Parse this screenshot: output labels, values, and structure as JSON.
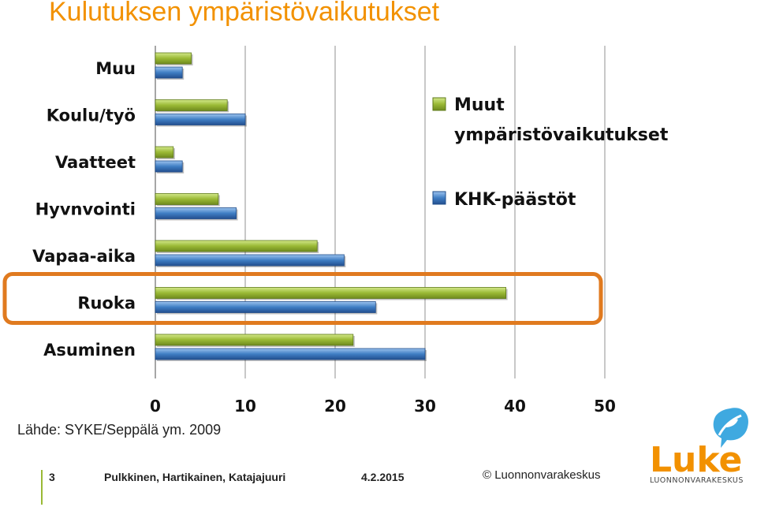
{
  "title": "Kulutuksen ympäristövaikutukset",
  "chart_data": {
    "type": "bar",
    "orientation": "horizontal",
    "categories": [
      "Muu",
      "Koulu/työ",
      "Vaatteet",
      "Hyvnvointi",
      "Vapaa-aika",
      "Ruoka",
      "Asuminen"
    ],
    "series": [
      {
        "name": "Muut ympäristövaikutukset",
        "color": "#9ab935",
        "values": [
          4,
          8,
          2,
          7,
          18,
          39,
          22
        ]
      },
      {
        "name": "KHK-päästöt",
        "color": "#3f7ec4",
        "values": [
          3,
          10,
          3,
          9,
          21,
          24.5,
          30
        ]
      }
    ],
    "x_ticks": [
      0,
      10,
      20,
      30,
      40,
      50
    ],
    "xlim": [
      0,
      50
    ],
    "grid": true,
    "legend_position": "right",
    "highlighted_category": "Ruoka",
    "highlight_color": "#e07a1f"
  },
  "source": "Lähde: SYKE/Seppälä ym. 2009",
  "footer": {
    "page": "3",
    "authors": "Pulkkinen, Hartikainen, Katajajuuri",
    "date": "4.2.2015",
    "copyright": "© Luonnonvarakeskus"
  },
  "logo": {
    "name": "Luke",
    "subtitle": "LUONNONVARAKESKUS",
    "icon": "leaf-speech-bubble-icon"
  }
}
